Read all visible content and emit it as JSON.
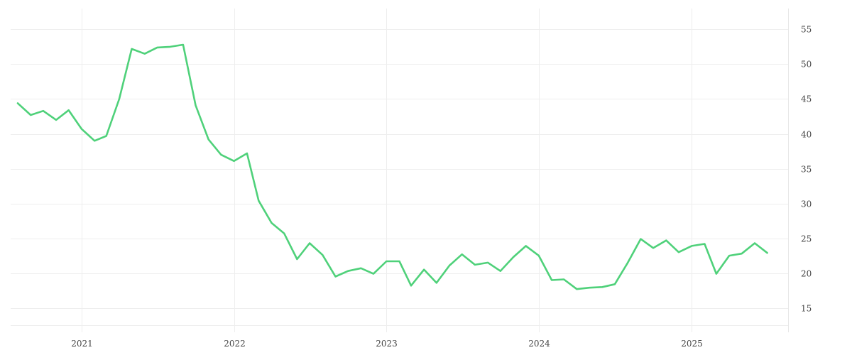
{
  "chart_data": {
    "type": "line",
    "title": "",
    "xlabel": "",
    "ylabel": "",
    "grid": true,
    "legend": "none",
    "line_color": "#4fd17a",
    "x_ticks": [
      "2021",
      "2022",
      "2023",
      "2024",
      "2025"
    ],
    "y_ticks": [
      15,
      20,
      25,
      30,
      35,
      40,
      45,
      50,
      55
    ],
    "ylim": [
      11.5,
      58
    ],
    "xlim": [
      "2020-07-15",
      "2025-08-20"
    ],
    "series": [
      {
        "x": [
          "2020-08-01",
          "2020-09-01",
          "2020-10-01",
          "2020-11-01",
          "2020-12-01",
          "2021-01-01",
          "2021-02-01",
          "2021-03-01",
          "2021-04-01",
          "2021-05-01",
          "2021-06-01",
          "2021-07-01",
          "2021-08-01",
          "2021-09-01",
          "2021-10-01",
          "2021-11-01",
          "2021-12-01",
          "2022-01-01",
          "2022-02-01",
          "2022-03-01",
          "2022-04-01",
          "2022-05-01",
          "2022-06-01",
          "2022-07-01",
          "2022-08-01",
          "2022-09-01",
          "2022-10-01",
          "2022-11-01",
          "2022-12-01",
          "2023-01-01",
          "2023-02-01",
          "2023-03-01",
          "2023-04-01",
          "2023-05-01",
          "2023-06-01",
          "2023-07-01",
          "2023-08-01",
          "2023-09-01",
          "2023-10-01",
          "2023-11-01",
          "2023-12-01",
          "2024-01-01",
          "2024-02-01",
          "2024-03-01",
          "2024-04-01",
          "2024-05-01",
          "2024-06-01",
          "2024-07-01",
          "2024-08-01",
          "2024-09-01",
          "2024-10-01",
          "2024-11-01",
          "2024-12-01",
          "2025-01-01",
          "2025-02-01",
          "2025-03-01",
          "2025-04-01",
          "2025-05-01",
          "2025-06-01",
          "2025-07-01"
        ],
        "values": [
          44.4,
          42.7,
          43.3,
          42.0,
          43.4,
          40.7,
          39.0,
          39.7,
          45.0,
          52.2,
          51.5,
          52.4,
          52.5,
          52.8,
          44.1,
          39.2,
          37.0,
          36.1,
          37.2,
          30.4,
          27.2,
          25.7,
          22.0,
          24.3,
          22.6,
          19.5,
          20.3,
          20.7,
          19.9,
          21.7,
          21.7,
          18.2,
          20.5,
          18.6,
          21.1,
          22.7,
          21.2,
          21.5,
          20.3,
          22.3,
          23.9,
          22.5,
          19.0,
          19.1,
          17.7,
          17.9,
          18.0,
          18.4,
          21.5,
          24.9,
          23.6,
          24.7,
          23.0,
          23.9,
          24.2,
          19.9,
          22.5,
          22.8,
          24.3,
          22.9
        ]
      }
    ]
  }
}
